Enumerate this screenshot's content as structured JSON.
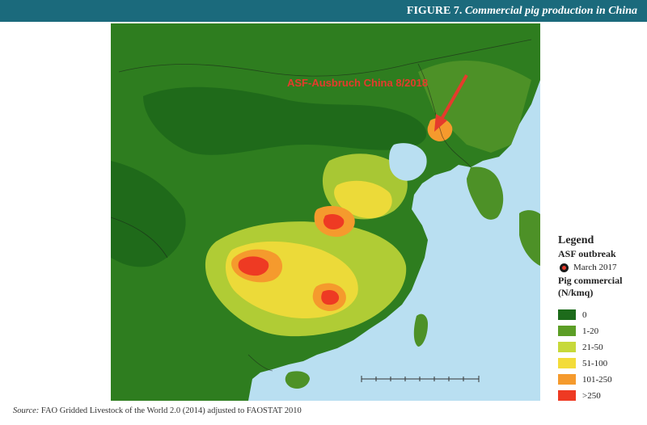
{
  "figure": {
    "number": "FIGURE 7.",
    "caption": "Commercial pig production in China"
  },
  "map": {
    "annotation": "ASF-Ausbruch China 8/2018",
    "annotation_color": "#e53b2c",
    "sea_color": "#b9dff1"
  },
  "legend": {
    "title": "Legend",
    "outbreak_heading": "ASF outbreak",
    "outbreak_label": "March 2017",
    "pig_heading": "Pig commercial",
    "pig_unit": "(N/kmq)",
    "classes": [
      {
        "label": "0",
        "color": "#1d6b1b"
      },
      {
        "label": "1-20",
        "color": "#5c9e26"
      },
      {
        "label": "21-50",
        "color": "#c7d93a"
      },
      {
        "label": "51-100",
        "color": "#f3dc3a"
      },
      {
        "label": "101-250",
        "color": "#f59a2d"
      },
      {
        "label": ">250",
        "color": "#ee3a23"
      }
    ]
  },
  "source": {
    "lead": "Source:",
    "text": "FAO Gridded Livestock of the World 2.0 (2014) adjusted to FAOSTAT 2010"
  }
}
